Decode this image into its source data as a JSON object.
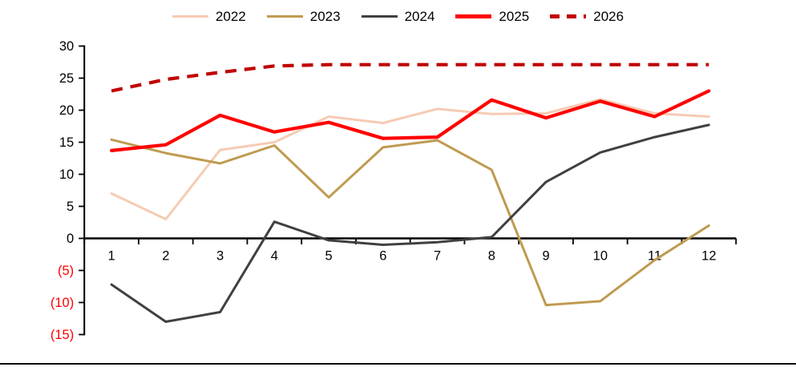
{
  "chart_data": {
    "type": "line",
    "title": "",
    "xlabel": "",
    "ylabel": "",
    "grid": false,
    "legend_position": "top-center",
    "ylim": [
      -15,
      30
    ],
    "y_tick_step": 5,
    "categories": [
      "1",
      "2",
      "3",
      "4",
      "5",
      "6",
      "7",
      "8",
      "9",
      "10",
      "11",
      "12"
    ],
    "series": [
      {
        "name": "2022",
        "color": "#F6CBB3",
        "dashed": false,
        "thick": false,
        "values": [
          7,
          3,
          13.8,
          15,
          19,
          18,
          20.2,
          19.4,
          19.5,
          21.7,
          19.5,
          19
        ]
      },
      {
        "name": "2023",
        "color": "#BF9B50",
        "dashed": false,
        "thick": false,
        "values": [
          15.4,
          13.3,
          11.7,
          14.5,
          6.4,
          14.2,
          15.3,
          10.7,
          -10.4,
          -9.8,
          -3.4,
          2
        ]
      },
      {
        "name": "2024",
        "color": "#404040",
        "dashed": false,
        "thick": false,
        "values": [
          -7.2,
          -13,
          -11.5,
          2.6,
          -0.3,
          -1,
          -0.6,
          0.2,
          8.8,
          13.4,
          15.8,
          17.7
        ]
      },
      {
        "name": "2025",
        "color": "#FF0000",
        "dashed": false,
        "thick": true,
        "values": [
          13.7,
          14.6,
          19.2,
          16.6,
          18.1,
          15.6,
          15.8,
          21.6,
          18.8,
          21.4,
          19,
          23
        ]
      },
      {
        "name": "2026",
        "color": "#C00000",
        "dashed": true,
        "thick": true,
        "values": [
          23,
          24.8,
          25.9,
          26.9,
          27.1,
          27.1,
          27.1,
          27.1,
          27.1,
          27.1,
          27.1,
          27.1
        ]
      }
    ],
    "y_ticks": [
      {
        "label": "30",
        "value": 30,
        "color": "#000000"
      },
      {
        "label": "25",
        "value": 25,
        "color": "#000000"
      },
      {
        "label": "20",
        "value": 20,
        "color": "#000000"
      },
      {
        "label": "15",
        "value": 15,
        "color": "#000000"
      },
      {
        "label": "10",
        "value": 10,
        "color": "#000000"
      },
      {
        "label": "5",
        "value": 5,
        "color": "#000000"
      },
      {
        "label": "0",
        "value": 0,
        "color": "#000000"
      },
      {
        "label": "(5)",
        "value": -5,
        "color": "#FF0000"
      },
      {
        "label": "(10)",
        "value": -10,
        "color": "#FF0000"
      },
      {
        "label": "(15)",
        "value": -15,
        "color": "#FF0000"
      }
    ],
    "axis_color": "#000000"
  }
}
